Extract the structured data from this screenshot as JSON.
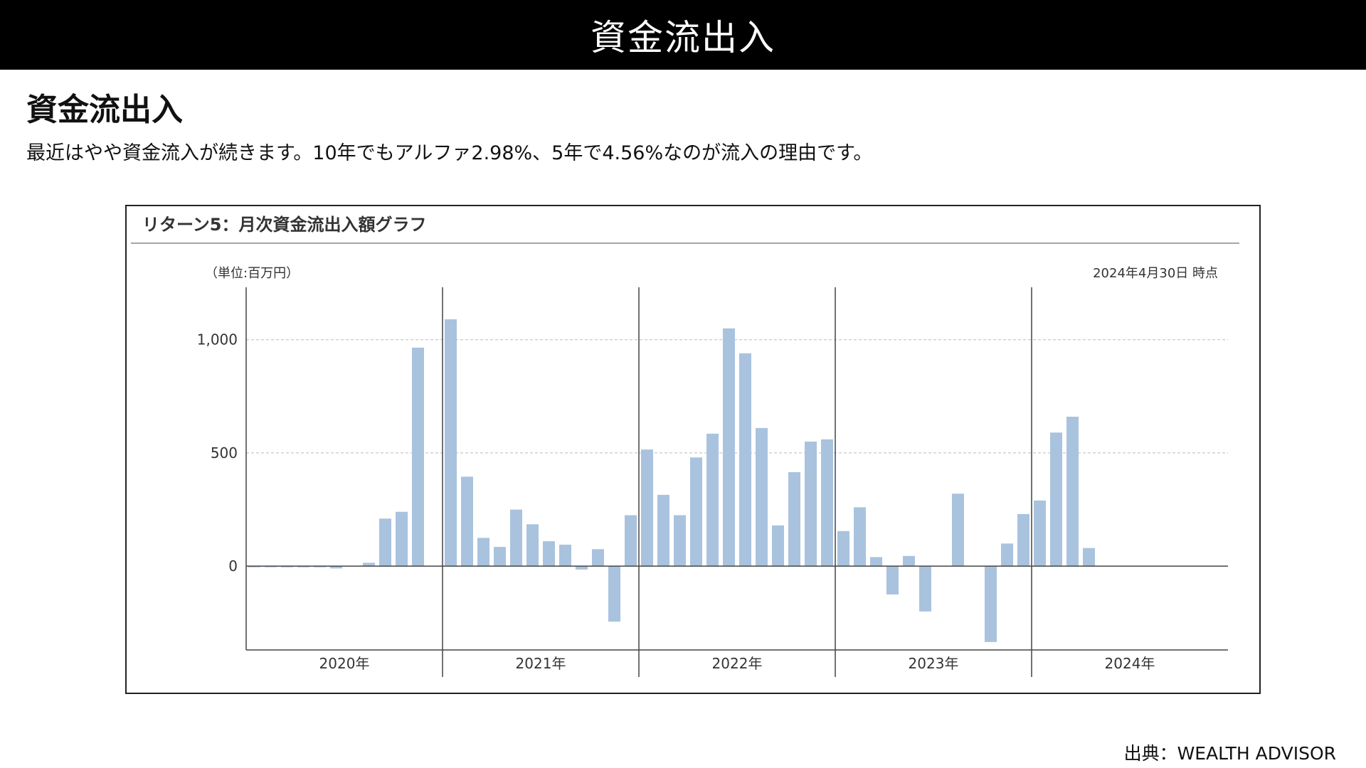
{
  "page": {
    "banner_title": "資金流出入",
    "heading": "資金流出入",
    "description": "最近はやや資金流入が続きます。10年でもアルファ2.98%、5年で4.56%なのが流入の理由です。",
    "source": "出典：WEALTH ADVISOR"
  },
  "chart_data": {
    "type": "bar",
    "title": "リターン5：月次資金流出入額グラフ",
    "unit_label": "（単位:百万円）",
    "as_of": "2024年4月30日 時点",
    "ylim": [
      -370,
      1200
    ],
    "yticks": [
      0,
      500,
      1000
    ],
    "ytick_labels": [
      "0",
      "500",
      "1,000"
    ],
    "grid": "dashed horizontal at 500 and 1,000",
    "bar_color": "#a9c3de",
    "years": [
      "2020年",
      "2021年",
      "2022年",
      "2023年",
      "2024年"
    ],
    "months_per_year": 12,
    "values": [
      -5,
      -3,
      -5,
      -5,
      -5,
      -10,
      0,
      15,
      210,
      240,
      965,
      0,
      1090,
      395,
      125,
      85,
      250,
      185,
      110,
      95,
      -15,
      75,
      -245,
      225,
      515,
      315,
      225,
      480,
      585,
      1050,
      940,
      610,
      180,
      415,
      550,
      560,
      155,
      260,
      40,
      -125,
      45,
      -200,
      0,
      320,
      0,
      -335,
      100,
      230,
      290,
      590,
      660,
      80
    ]
  }
}
